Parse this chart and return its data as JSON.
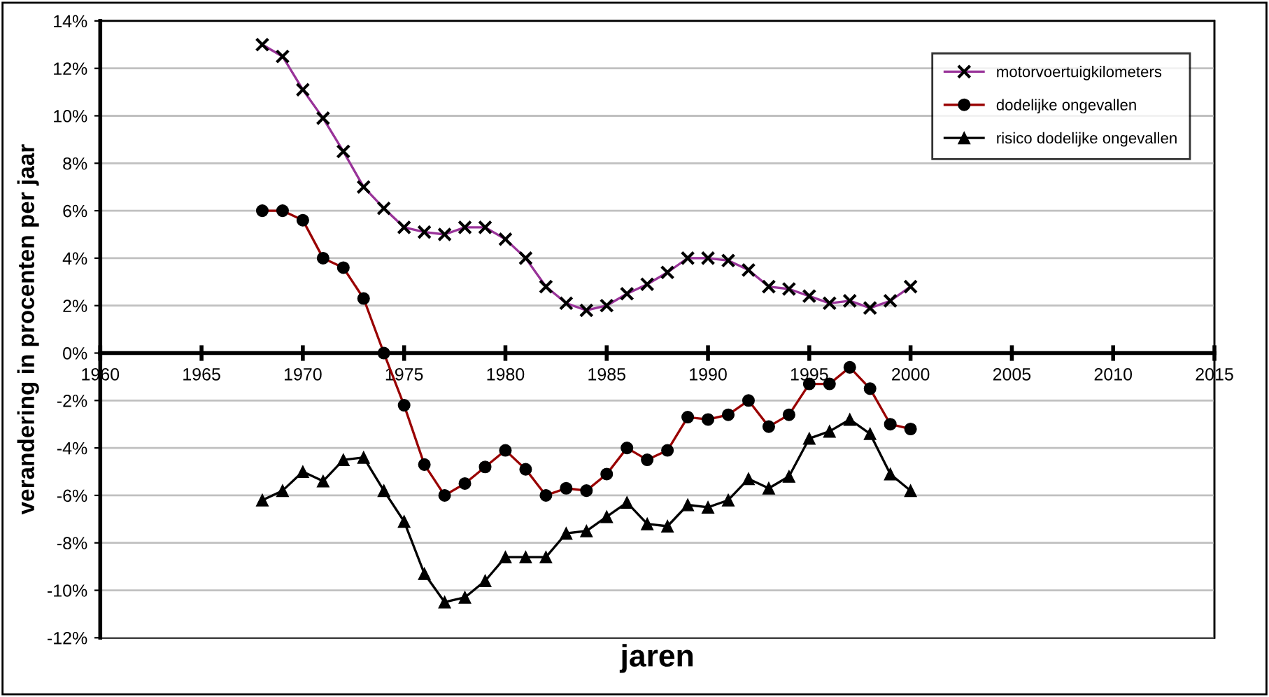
{
  "chart_data": {
    "type": "line",
    "xlabel": "jaren",
    "ylabel": "verandering in procenten per jaar",
    "x": [
      1968,
      1969,
      1970,
      1971,
      1972,
      1973,
      1974,
      1975,
      1976,
      1977,
      1978,
      1979,
      1980,
      1981,
      1982,
      1983,
      1984,
      1985,
      1986,
      1987,
      1988,
      1989,
      1990,
      1991,
      1992,
      1993,
      1994,
      1995,
      1996,
      1997,
      1998,
      1999,
      2000
    ],
    "series": [
      {
        "name": "motorvoertuigkilometers",
        "color": "#993399",
        "marker": "cross",
        "values": [
          13.0,
          12.5,
          11.1,
          9.9,
          8.5,
          7.0,
          6.1,
          5.3,
          5.1,
          5.0,
          5.3,
          5.3,
          4.8,
          4.0,
          2.8,
          2.1,
          1.8,
          2.0,
          2.5,
          2.9,
          3.4,
          4.0,
          4.0,
          3.9,
          3.5,
          2.8,
          2.7,
          2.4,
          2.1,
          2.2,
          1.9,
          2.2,
          2.8
        ]
      },
      {
        "name": "dodelijke ongevallen",
        "color": "#990000",
        "marker": "circle",
        "values": [
          6.0,
          6.0,
          5.6,
          4.0,
          3.6,
          2.3,
          0,
          -2.2,
          -4.7,
          -6.0,
          -5.5,
          -4.8,
          -4.1,
          -4.9,
          -6.0,
          -5.7,
          -5.8,
          -5.1,
          -4.0,
          -4.5,
          -4.1,
          -2.7,
          -2.8,
          -2.6,
          -2.0,
          -3.1,
          -2.6,
          -1.3,
          -1.3,
          -0.6,
          -1.5,
          -3.0,
          -3.2
        ]
      },
      {
        "name": "risico dodelijke ongevallen",
        "color": "#000000",
        "marker": "triangle",
        "values": [
          -6.2,
          -5.8,
          -5.0,
          -5.4,
          -4.5,
          -4.4,
          -5.8,
          -7.1,
          -9.3,
          -10.5,
          -10.3,
          -9.6,
          -8.6,
          -8.6,
          -8.6,
          -7.6,
          -7.5,
          -6.9,
          -6.3,
          -7.2,
          -7.3,
          -6.4,
          -6.5,
          -6.2,
          -5.3,
          -5.7,
          -5.2,
          -3.6,
          -3.3,
          -2.8,
          -3.4,
          -5.1,
          -5.8
        ]
      }
    ],
    "xlim": [
      1960,
      2015
    ],
    "xticks": [
      1960,
      1965,
      1970,
      1975,
      1980,
      1985,
      1990,
      1995,
      2000,
      2005,
      2010,
      2015
    ],
    "ylim": [
      -12,
      14
    ],
    "yticks": [
      {
        "value": -12,
        "label": "-12%"
      },
      {
        "value": -10,
        "label": "-10%"
      },
      {
        "value": -8,
        "label": "-8%"
      },
      {
        "value": -6,
        "label": "-6%"
      },
      {
        "value": -4,
        "label": "-4%"
      },
      {
        "value": -2,
        "label": "-2%"
      },
      {
        "value": 0,
        "label": "0%"
      },
      {
        "value": 2,
        "label": "2%"
      },
      {
        "value": 4,
        "label": "4%"
      },
      {
        "value": 6,
        "label": "6%"
      },
      {
        "value": 8,
        "label": "8%"
      },
      {
        "value": 10,
        "label": "10%"
      },
      {
        "value": 12,
        "label": "12%"
      },
      {
        "value": 14,
        "label": "14%"
      }
    ],
    "grid": "y",
    "legend": "top right",
    "line_style": "solid"
  }
}
